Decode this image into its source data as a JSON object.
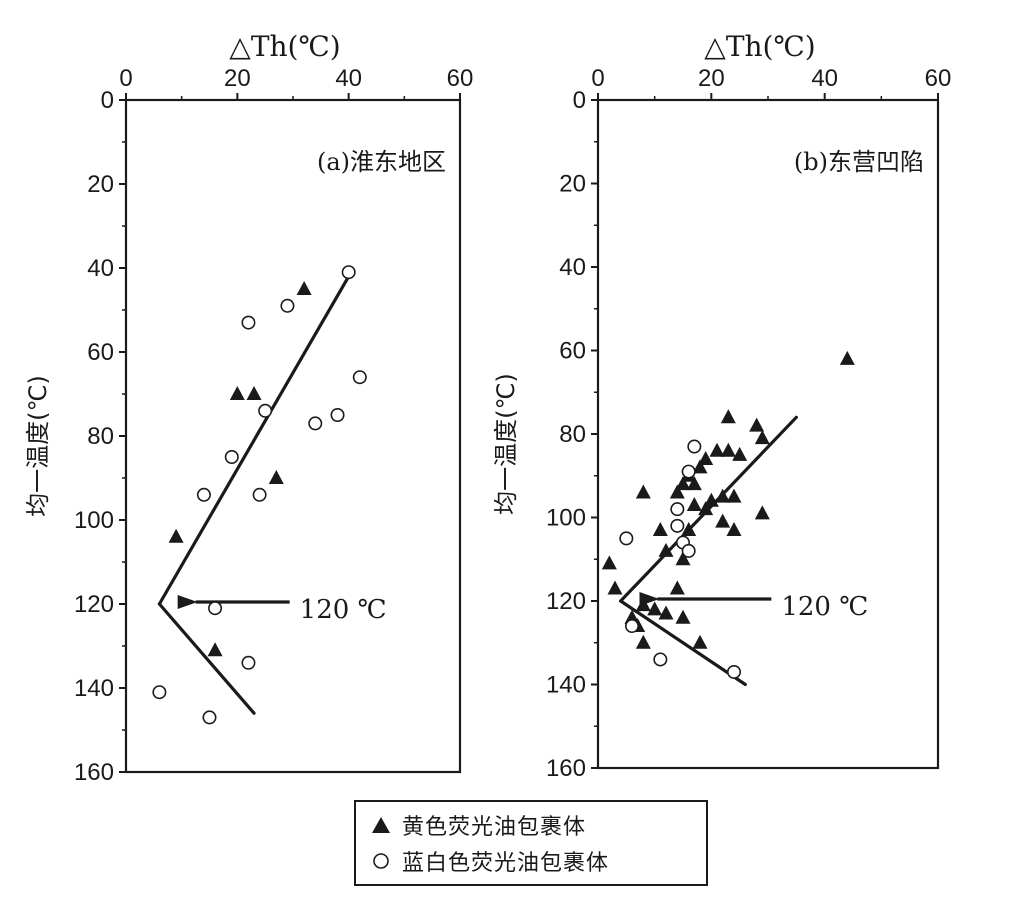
{
  "chart_data": [
    {
      "type": "scatter",
      "panel_label": "(a)淮东地区",
      "xlabel": "△Th(℃)",
      "ylabel": "均一温度(℃)",
      "xlim": [
        0,
        60
      ],
      "ylim": [
        160,
        0
      ],
      "xticks": [
        0,
        20,
        40,
        60
      ],
      "yticks": [
        0,
        20,
        40,
        60,
        80,
        100,
        120,
        140,
        160
      ],
      "series": [
        {
          "name": "黄色荧光油包裹体",
          "marker": "filled-triangle",
          "points": [
            [
              32,
              45
            ],
            [
              20,
              70
            ],
            [
              23,
              70
            ],
            [
              27,
              90
            ],
            [
              9,
              104
            ],
            [
              16,
              131
            ]
          ]
        },
        {
          "name": "蓝白色荧光油包裹体",
          "marker": "open-circle",
          "points": [
            [
              40,
              41
            ],
            [
              22,
              53
            ],
            [
              29,
              49
            ],
            [
              42,
              66
            ],
            [
              25,
              74
            ],
            [
              34,
              77
            ],
            [
              38,
              75
            ],
            [
              19,
              85
            ],
            [
              14,
              94
            ],
            [
              24,
              94
            ],
            [
              16,
              121
            ],
            [
              22,
              134
            ],
            [
              6,
              141
            ],
            [
              15,
              147
            ]
          ]
        }
      ],
      "trend_lines": [
        [
          [
            40,
            42
          ],
          [
            6,
            120
          ]
        ],
        [
          [
            6,
            120
          ],
          [
            23,
            146
          ]
        ]
      ],
      "annotation": {
        "text": "120 ℃",
        "points_to": [
          10,
          120
        ]
      }
    },
    {
      "type": "scatter",
      "panel_label": "(b)东营凹陷",
      "xlabel": "△Th(℃)",
      "ylabel": "均一温度(℃)",
      "xlim": [
        0,
        60
      ],
      "ylim": [
        160,
        0
      ],
      "xticks": [
        0,
        20,
        40,
        60
      ],
      "yticks": [
        0,
        20,
        40,
        60,
        80,
        100,
        120,
        140,
        160
      ],
      "series": [
        {
          "name": "黄色荧光油包裹体",
          "marker": "filled-triangle",
          "points": [
            [
              44,
              62
            ],
            [
              23,
              76
            ],
            [
              28,
              78
            ],
            [
              29,
              81
            ],
            [
              21,
              84
            ],
            [
              23,
              84
            ],
            [
              19,
              86
            ],
            [
              25,
              85
            ],
            [
              18,
              88
            ],
            [
              16,
              90
            ],
            [
              15,
              92
            ],
            [
              17,
              92
            ],
            [
              14,
              94
            ],
            [
              8,
              94
            ],
            [
              20,
              96
            ],
            [
              22,
              95
            ],
            [
              24,
              95
            ],
            [
              17,
              97
            ],
            [
              19,
              98
            ],
            [
              29,
              99
            ],
            [
              11,
              103
            ],
            [
              16,
              103
            ],
            [
              22,
              101
            ],
            [
              24,
              103
            ],
            [
              12,
              108
            ],
            [
              15,
              110
            ],
            [
              2,
              111
            ],
            [
              3,
              117
            ],
            [
              14,
              117
            ],
            [
              8,
              121
            ],
            [
              10,
              122
            ],
            [
              12,
              123
            ],
            [
              6,
              124
            ],
            [
              7,
              126
            ],
            [
              15,
              124
            ],
            [
              8,
              130
            ],
            [
              18,
              130
            ]
          ]
        },
        {
          "name": "蓝白色荧光油包裹体",
          "marker": "open-circle",
          "points": [
            [
              17,
              83
            ],
            [
              16,
              89
            ],
            [
              14,
              98
            ],
            [
              14,
              102
            ],
            [
              15,
              106
            ],
            [
              16,
              108
            ],
            [
              5,
              105
            ],
            [
              6,
              126
            ],
            [
              11,
              134
            ],
            [
              24,
              137
            ]
          ]
        }
      ],
      "trend_lines": [
        [
          [
            35,
            76
          ],
          [
            4,
            120
          ]
        ],
        [
          [
            4,
            120
          ],
          [
            26,
            140
          ]
        ]
      ],
      "annotation": {
        "text": "120 ℃",
        "points_to": [
          8,
          120
        ]
      }
    }
  ],
  "legend": {
    "items": [
      {
        "label": "黄色荧光油包裹体",
        "marker": "filled-triangle"
      },
      {
        "label": "蓝白色荧光油包裹体",
        "marker": "open-circle"
      }
    ]
  },
  "colors": {
    "ink": "#1a1a1a",
    "background": "#ffffff"
  }
}
